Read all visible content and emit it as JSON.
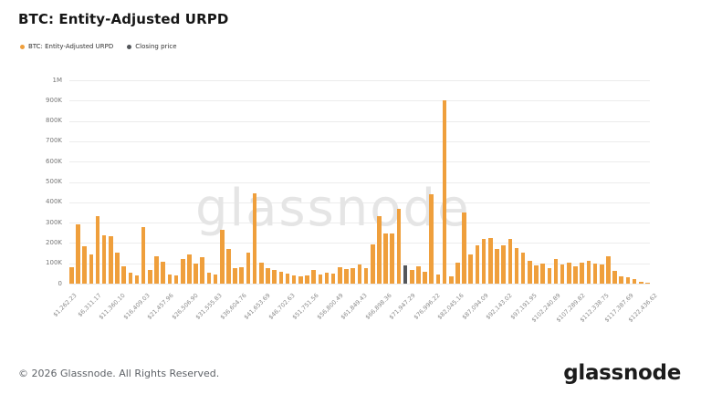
{
  "header": {
    "title": "BTC: Entity-Adjusted URPD"
  },
  "legend": {
    "items": [
      {
        "label": "BTC: Entity-Adjusted URPD",
        "color": "#EF9F3C"
      },
      {
        "label": "Closing price",
        "color": "#53565A"
      }
    ]
  },
  "watermark": "glassnode",
  "footer": {
    "copyright": "© 2026 Glassnode. All Rights Reserved.",
    "logo": "glassnode"
  },
  "chart_data": {
    "type": "bar",
    "title": "BTC: Entity-Adjusted URPD",
    "xlabel": "",
    "ylabel": "",
    "ylim": [
      0,
      1000000
    ],
    "grid": true,
    "legend_position": "top-left",
    "y_tick_labels": [
      "0",
      "100K",
      "200K",
      "300K",
      "400K",
      "500K",
      "600K",
      "700K",
      "800K",
      "900K",
      "1M"
    ],
    "x_tick_labels": [
      "$1,262.23",
      "$6,311.17",
      "$11,360.10",
      "$16,409.03",
      "$21,457.96",
      "$26,506.90",
      "$31,555.83",
      "$36,604.76",
      "$41,653.69",
      "$46,702.63",
      "$51,751.56",
      "$56,800.49",
      "$61,849.43",
      "$66,898.36",
      "$71,947.29",
      "$76,996.22",
      "$82,045.16",
      "$87,094.09",
      "$92,143.02",
      "$97,191.95",
      "$102,240.89",
      "$107,289.82",
      "$112,338.75",
      "$117,387.69",
      "$122,436.62"
    ],
    "bar_color": "#EF9F3C",
    "closing_price_color": "#53565A",
    "closing_price_index": 51,
    "series": [
      {
        "name": "BTC: Entity-Adjusted URPD",
        "values": [
          83000,
          290000,
          185000,
          143000,
          333000,
          240000,
          235000,
          153000,
          87000,
          53000,
          42000,
          278000,
          66000,
          135000,
          110000,
          45000,
          40000,
          120000,
          145000,
          97000,
          132000,
          52000,
          45000,
          267000,
          172000,
          75000,
          82000,
          152000,
          445000,
          102000,
          75000,
          66000,
          58000,
          48000,
          40000,
          37000,
          40000,
          67000,
          45000,
          52000,
          48000,
          82000,
          70000,
          78000,
          93000,
          78000,
          195000,
          330000,
          245000,
          248000,
          368000,
          90000,
          68000,
          85000,
          60000,
          438000,
          45000,
          900000,
          38000,
          105000,
          348000,
          143000,
          190000,
          218000,
          225000,
          170000,
          188000,
          222000,
          173000,
          153000,
          113000,
          90000,
          98000,
          75000,
          120000,
          93000,
          105000,
          87000,
          105000,
          113000,
          100000,
          93000,
          135000,
          63000,
          38000,
          30000,
          23000,
          8000,
          5000
        ]
      }
    ]
  }
}
